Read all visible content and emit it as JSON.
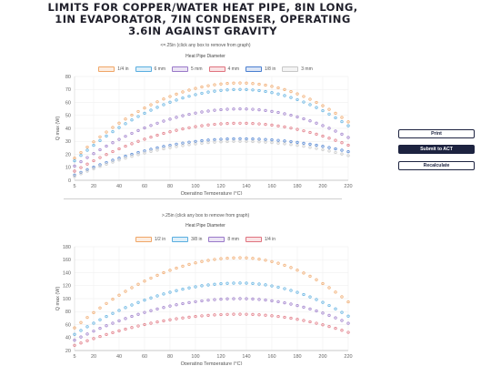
{
  "page": {
    "title": "LIMITS FOR COPPER/WATER HEAT PIPE, 8IN LONG, 1IN EVAPORATOR, 7IN CONDENSER, OPERATING 3.6IN AGAINST GRAVITY"
  },
  "buttons": {
    "print": "Print",
    "submit": "Submit to ACT",
    "recalculate": "Recalculate"
  },
  "colors": {
    "orange": "#f0a667",
    "blue": "#5aaee0",
    "purple": "#9a79c9",
    "red": "#e0737f",
    "darkblue": "#4a7fd0",
    "gray": "#c7c7c7"
  },
  "chart_data": [
    {
      "type": "scatter",
      "note": "<=.25in (click any box to remove from graph)",
      "legend_title": "Heat Pipe Diameter",
      "legend_position": "top",
      "xlabel": "Operating Temperature (°C)",
      "ylabel": "Q max (W)",
      "xlim": [
        5,
        220
      ],
      "ylim": [
        0,
        80
      ],
      "x_ticks": [
        5,
        20,
        40,
        60,
        80,
        100,
        120,
        140,
        160,
        180,
        200,
        220
      ],
      "y_ticks": [
        0,
        10,
        20,
        30,
        40,
        50,
        60,
        70,
        80
      ],
      "grid": true,
      "series": [
        {
          "name": "1/4 in",
          "color": "orange",
          "min": 17,
          "peak": 75,
          "peak_x": 135,
          "end": 45
        },
        {
          "name": "6 mm",
          "color": "blue",
          "min": 15,
          "peak": 70,
          "peak_x": 135,
          "end": 42
        },
        {
          "name": "5 mm",
          "color": "purple",
          "min": 11,
          "peak": 55,
          "peak_x": 135,
          "end": 33
        },
        {
          "name": "4 mm",
          "color": "red",
          "min": 7,
          "peak": 44,
          "peak_x": 135,
          "end": 27
        },
        {
          "name": "1/8 in",
          "color": "darkblue",
          "min": 4,
          "peak": 32,
          "peak_x": 135,
          "end": 22
        },
        {
          "name": "3 mm",
          "color": "gray",
          "min": 3,
          "peak": 30,
          "peak_x": 135,
          "end": 19
        }
      ]
    },
    {
      "type": "scatter",
      "note": ">.25in (click any box to remove from graph)",
      "legend_title": "Heat Pipe Diameter",
      "legend_position": "top",
      "xlabel": "Operating Temperature (°C)",
      "ylabel": "Q max (W)",
      "xlim": [
        5,
        220
      ],
      "ylim": [
        20,
        180
      ],
      "x_ticks": [
        5,
        20,
        40,
        60,
        80,
        100,
        120,
        140,
        160,
        180,
        200,
        220
      ],
      "y_ticks": [
        20,
        40,
        60,
        80,
        100,
        120,
        140,
        160,
        180
      ],
      "grid": true,
      "series": [
        {
          "name": "1/2 in",
          "color": "orange",
          "min": 55,
          "peak": 163,
          "peak_x": 135,
          "end": 95
        },
        {
          "name": "3/8 in",
          "color": "blue",
          "min": 45,
          "peak": 124,
          "peak_x": 135,
          "end": 73
        },
        {
          "name": "8 mm",
          "color": "purple",
          "min": 36,
          "peak": 100,
          "peak_x": 135,
          "end": 62
        },
        {
          "name": "1/4 in",
          "color": "red",
          "min": 28,
          "peak": 76,
          "peak_x": 135,
          "end": 48
        }
      ]
    }
  ]
}
